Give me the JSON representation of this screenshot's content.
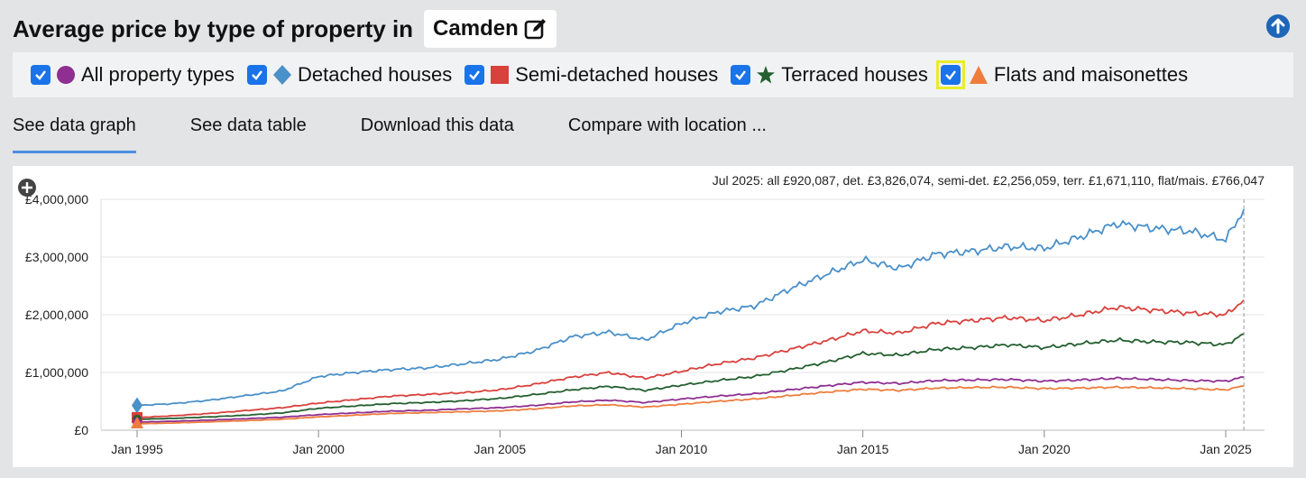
{
  "header": {
    "title": "Average price by type of property in",
    "location": "Camden"
  },
  "legend": [
    {
      "label": "All property types",
      "symbol": "circle",
      "color": "#8e2f91",
      "checked": true
    },
    {
      "label": "Detached houses",
      "symbol": "diamond",
      "color": "#4a90c9",
      "checked": true
    },
    {
      "label": "Semi-detached houses",
      "symbol": "square",
      "color": "#d8413c",
      "checked": true
    },
    {
      "label": "Terraced houses",
      "symbol": "star",
      "color": "#235f2f",
      "checked": true
    },
    {
      "label": "Flats and maisonettes",
      "symbol": "triangle",
      "color": "#ee7d3d",
      "checked": true,
      "highlighted": true
    }
  ],
  "tabs": [
    {
      "label": "See data graph",
      "active": true
    },
    {
      "label": "See data table",
      "active": false
    },
    {
      "label": "Download this data",
      "active": false
    },
    {
      "label": "Compare with location ...",
      "active": false
    }
  ],
  "chart_data": {
    "type": "line",
    "annotation": "Jul 2025: all £920,087, det. £3,826,074, semi-det. £2,256,059, terr. £1,671,110, flat/mais. £766,047",
    "x_ticks": [
      "Jan 1995",
      "Jan 2000",
      "Jan 2005",
      "Jan 2010",
      "Jan 2015",
      "Jan 2020",
      "Jan 2025"
    ],
    "y_ticks": [
      "£0",
      "£1,000,000",
      "£2,000,000",
      "£3,000,000",
      "£4,000,000"
    ],
    "ylim": [
      0,
      4000000
    ],
    "xlim": [
      1995,
      2025.5
    ],
    "grid": true,
    "x": [
      1995,
      1996,
      1997,
      1998,
      1999,
      2000,
      2001,
      2002,
      2003,
      2004,
      2005,
      2006,
      2007,
      2008,
      2009,
      2010,
      2011,
      2012,
      2013,
      2014,
      2015,
      2016,
      2017,
      2018,
      2019,
      2020,
      2021,
      2022,
      2023,
      2024,
      2025,
      2025.5
    ],
    "series": [
      {
        "name": "Detached houses",
        "color": "#4a90c9",
        "values": [
          430000,
          460000,
          520000,
          600000,
          680000,
          930000,
          1000000,
          1050000,
          1080000,
          1150000,
          1230000,
          1380000,
          1620000,
          1700000,
          1560000,
          1850000,
          2050000,
          2150000,
          2450000,
          2700000,
          2950000,
          2800000,
          3050000,
          3100000,
          3180000,
          3150000,
          3350000,
          3580000,
          3500000,
          3450000,
          3300000,
          3826074
        ]
      },
      {
        "name": "Semi-detached houses",
        "color": "#d8413c",
        "values": [
          220000,
          250000,
          290000,
          340000,
          390000,
          470000,
          530000,
          590000,
          620000,
          650000,
          700000,
          800000,
          920000,
          1000000,
          900000,
          1020000,
          1150000,
          1250000,
          1400000,
          1550000,
          1720000,
          1680000,
          1850000,
          1900000,
          1950000,
          1900000,
          2000000,
          2130000,
          2080000,
          2030000,
          2000000,
          2256059
        ]
      },
      {
        "name": "Terraced houses",
        "color": "#235f2f",
        "values": [
          190000,
          205000,
          230000,
          260000,
          300000,
          380000,
          420000,
          460000,
          480000,
          510000,
          550000,
          620000,
          700000,
          760000,
          690000,
          780000,
          860000,
          930000,
          1050000,
          1180000,
          1330000,
          1300000,
          1400000,
          1430000,
          1480000,
          1430000,
          1500000,
          1560000,
          1530000,
          1520000,
          1480000,
          1671110
        ]
      },
      {
        "name": "All property types",
        "color": "#8e2f91",
        "values": [
          140000,
          155000,
          175000,
          200000,
          225000,
          270000,
          300000,
          330000,
          345000,
          370000,
          390000,
          430000,
          490000,
          520000,
          480000,
          540000,
          590000,
          630000,
          700000,
          770000,
          830000,
          810000,
          860000,
          870000,
          880000,
          850000,
          870000,
          900000,
          880000,
          860000,
          850000,
          920087
        ]
      },
      {
        "name": "Flats and maisonettes",
        "color": "#ee7d3d",
        "values": [
          110000,
          125000,
          145000,
          165000,
          190000,
          230000,
          260000,
          290000,
          305000,
          320000,
          335000,
          370000,
          420000,
          440000,
          400000,
          450000,
          500000,
          540000,
          600000,
          660000,
          710000,
          690000,
          730000,
          740000,
          745000,
          720000,
          730000,
          745000,
          735000,
          720000,
          700000,
          766047
        ]
      }
    ]
  }
}
